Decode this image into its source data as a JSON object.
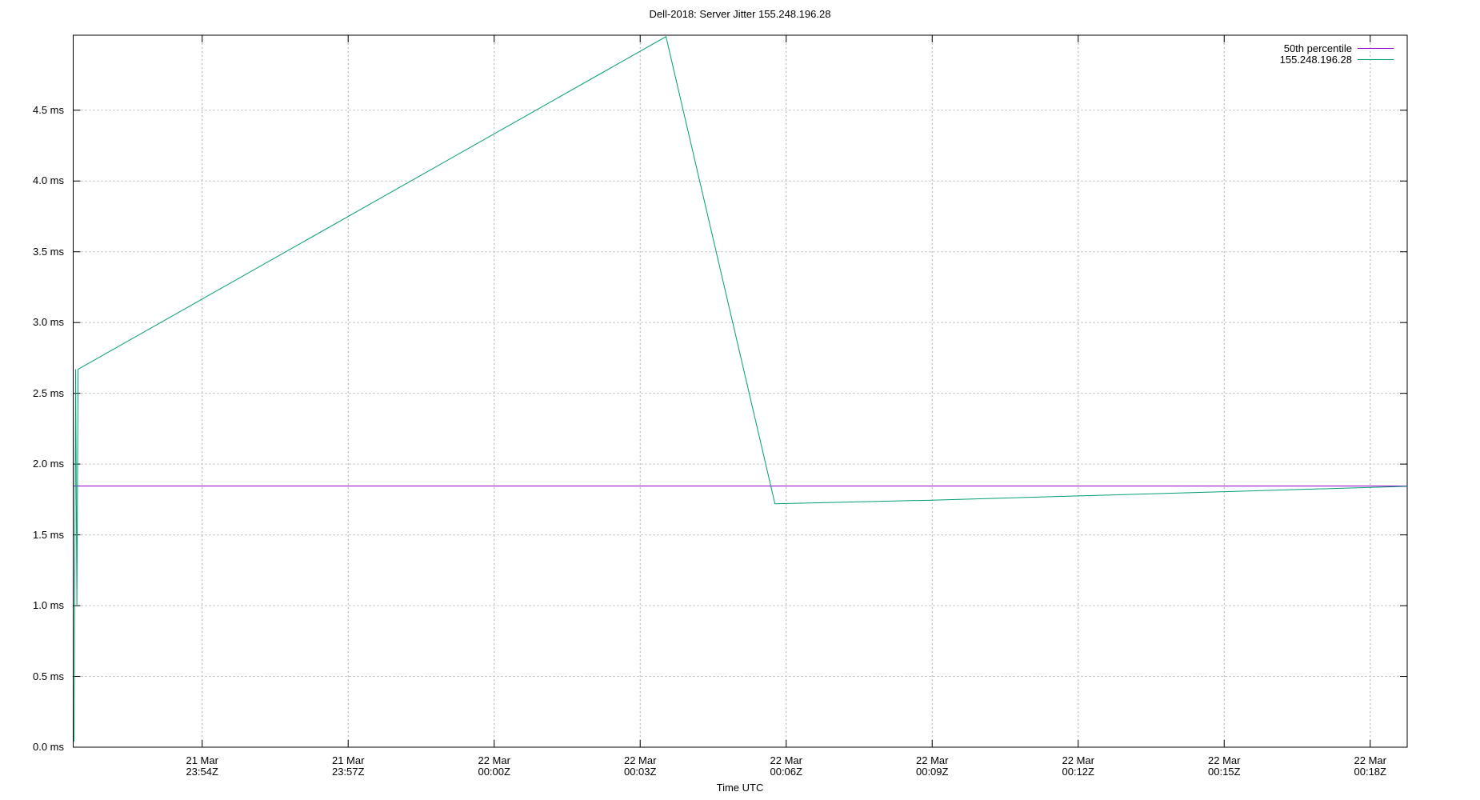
{
  "title": "Dell-2018: Server Jitter 155.248.196.28",
  "chart_data": {
    "type": "line",
    "title": "Dell-2018: Server Jitter 155.248.196.28",
    "xlabel": "Time UTC",
    "ylabel": "",
    "x_unit": "minutes since 21 Mar 23:54Z",
    "xlim_minutes": [
      -2.65,
      24.76
    ],
    "ylim": [
      0,
      5.03
    ],
    "grid": true,
    "legend_position": "top-right-inside",
    "colors": {
      "grid": "#b0b0b0",
      "border": "#000000",
      "background": "#ffffff"
    },
    "x_ticks": [
      {
        "t": 0,
        "line1": "21 Mar",
        "line2": "23:54Z"
      },
      {
        "t": 3,
        "line1": "21 Mar",
        "line2": "23:57Z"
      },
      {
        "t": 6,
        "line1": "22 Mar",
        "line2": "00:00Z"
      },
      {
        "t": 9,
        "line1": "22 Mar",
        "line2": "00:03Z"
      },
      {
        "t": 12,
        "line1": "22 Mar",
        "line2": "00:06Z"
      },
      {
        "t": 15,
        "line1": "22 Mar",
        "line2": "00:09Z"
      },
      {
        "t": 18,
        "line1": "22 Mar",
        "line2": "00:12Z"
      },
      {
        "t": 21,
        "line1": "22 Mar",
        "line2": "00:15Z"
      },
      {
        "t": 24,
        "line1": "22 Mar",
        "line2": "00:18Z"
      }
    ],
    "y_ticks": [
      {
        "v": 0.0,
        "label": "0.0 ms"
      },
      {
        "v": 0.5,
        "label": "0.5 ms"
      },
      {
        "v": 1.0,
        "label": "1.0 ms"
      },
      {
        "v": 1.5,
        "label": "1.5 ms"
      },
      {
        "v": 2.0,
        "label": "2.0 ms"
      },
      {
        "v": 2.5,
        "label": "2.5 ms"
      },
      {
        "v": 3.0,
        "label": "3.0 ms"
      },
      {
        "v": 3.5,
        "label": "3.5 ms"
      },
      {
        "v": 4.0,
        "label": "4.0 ms"
      },
      {
        "v": 4.5,
        "label": "4.5 ms"
      }
    ],
    "series": [
      {
        "name": "50th percentile",
        "color": "#9400d3",
        "points": [
          {
            "t": -2.65,
            "v": 1.845
          },
          {
            "t": 24.76,
            "v": 1.845
          }
        ]
      },
      {
        "name": "155.248.196.28",
        "color": "#009e73",
        "points": [
          {
            "t": -2.63,
            "v": 0.04
          },
          {
            "t": -2.6,
            "v": 2.67
          },
          {
            "t": -2.575,
            "v": 1.0
          },
          {
            "t": -2.55,
            "v": 2.67
          },
          {
            "t": 9.53,
            "v": 5.02
          },
          {
            "t": 11.77,
            "v": 1.72
          },
          {
            "t": 15.0,
            "v": 1.745
          },
          {
            "t": 18.0,
            "v": 1.775
          },
          {
            "t": 21.0,
            "v": 1.805
          },
          {
            "t": 24.76,
            "v": 1.843
          }
        ]
      }
    ]
  }
}
